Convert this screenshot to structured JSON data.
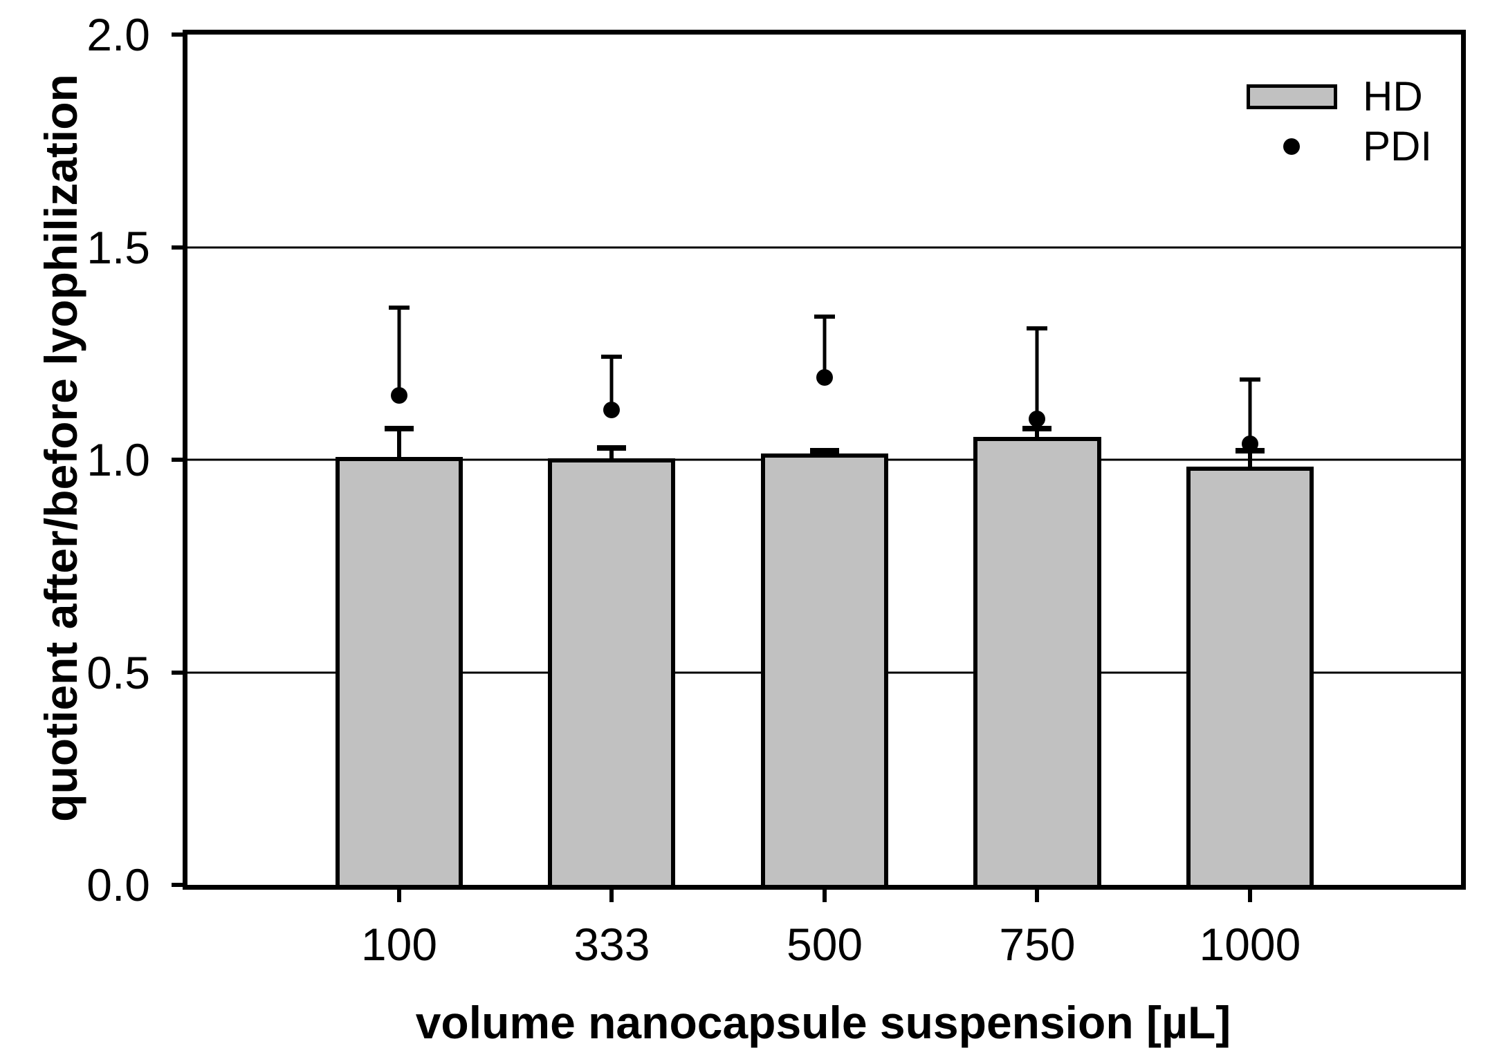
{
  "chart_data": {
    "type": "bar",
    "title": "",
    "xlabel": "volume nanocapsule suspension [µL]",
    "ylabel": "quotient after/before lyophilization",
    "categories": [
      "100",
      "333",
      "500",
      "750",
      "1000"
    ],
    "ylim": [
      0.0,
      2.0
    ],
    "y_ticks": [
      {
        "value": 0.0,
        "label": "0.0"
      },
      {
        "value": 0.5,
        "label": "0.5"
      },
      {
        "value": 1.0,
        "label": "1.0"
      },
      {
        "value": 1.5,
        "label": "1.5"
      },
      {
        "value": 2.0,
        "label": "2.0"
      }
    ],
    "gridline_values": [
      0.5,
      1.0,
      1.5
    ],
    "legend_position": "top-right",
    "series": [
      {
        "name": "HD",
        "type": "bar",
        "values": [
          1.006,
          1.003,
          1.015,
          1.054,
          0.984
        ],
        "err_up": [
          0.067,
          0.025,
          0.006,
          0.019,
          0.037
        ]
      },
      {
        "name": "PDI",
        "type": "scatter",
        "values": [
          1.151,
          1.117,
          1.194,
          1.096,
          1.038
        ],
        "err_up": [
          0.206,
          0.126,
          0.142,
          0.213,
          0.151
        ]
      }
    ],
    "colors": {
      "bar_fill": "#c1c1c1",
      "bar_border": "#000000",
      "marker": "#000000",
      "grid": "#000000",
      "background": "#ffffff"
    }
  }
}
